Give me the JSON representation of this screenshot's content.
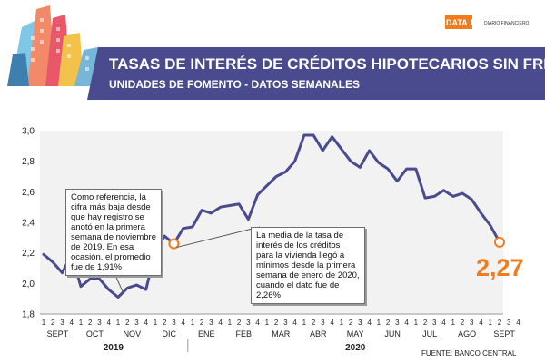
{
  "header": {
    "title": "TASAS DE INTERÉS DE CRÉDITOS HIPOTECARIOS SIN FRENOS",
    "subtitle": "UNIDADES DE FOMENTO - DATOS SEMANALES",
    "logo_left": "DATA",
    "logo_mid": "DF",
    "logo_right": "DIARIO FINANCIERO",
    "colors": {
      "band": "#4a4a8e",
      "accent": "#f07c1c"
    }
  },
  "source": "FUENTE: BANCO CENTRAL",
  "annotations": {
    "note_2019": "Como referencia, la cifra más baja desde que hay registro se anotó en la primera semana de noviembre de 2019. En esa ocasión, el promedio fue de 1,91%",
    "note_2020": "La media de la tasa de interés de los créditos para la vivienda llegó a mínimos desde la primera semana de enero de 2020, cuando el dato fue de 2,26%",
    "last_value_label": "2,27"
  },
  "chart_data": {
    "type": "line",
    "title": "TASAS DE INTERÉS DE CRÉDITOS HIPOTECARIOS SIN FRENOS",
    "subtitle": "UNIDADES DE FOMENTO - DATOS SEMANALES",
    "xlabel": "",
    "ylabel": "",
    "ylim": [
      1.8,
      3.0
    ],
    "y_ticks": [
      "1,8",
      "2,0",
      "2,2",
      "2,4",
      "2,6",
      "2,8",
      "3,0"
    ],
    "y_tick_values": [
      1.8,
      2.0,
      2.2,
      2.4,
      2.6,
      2.8,
      3.0
    ],
    "grid": false,
    "line_color": "#4a4a8e",
    "highlight_color": "#f07c1c",
    "months": [
      {
        "label": "SEPT",
        "weeks": [
          "1",
          "2",
          "3",
          "4"
        ]
      },
      {
        "label": "OCT",
        "weeks": [
          "1",
          "2",
          "3",
          "4"
        ]
      },
      {
        "label": "NOV",
        "weeks": [
          "1",
          "2",
          "3",
          "4"
        ]
      },
      {
        "label": "DIC",
        "weeks": [
          "1",
          "2",
          "3",
          "4"
        ]
      },
      {
        "label": "ENE",
        "weeks": [
          "1",
          "2",
          "3",
          "4"
        ]
      },
      {
        "label": "FEB",
        "weeks": [
          "1",
          "2",
          "3",
          "4"
        ]
      },
      {
        "label": "MAR",
        "weeks": [
          "1",
          "2",
          "3",
          "4"
        ]
      },
      {
        "label": "ABR",
        "weeks": [
          "1",
          "2",
          "3",
          "4"
        ]
      },
      {
        "label": "MAY",
        "weeks": [
          "1",
          "2",
          "3",
          "4"
        ]
      },
      {
        "label": "JUN",
        "weeks": [
          "1",
          "2",
          "3",
          "4"
        ]
      },
      {
        "label": "JUL",
        "weeks": [
          "1",
          "2",
          "3",
          "4"
        ]
      },
      {
        "label": "AGO",
        "weeks": [
          "1",
          "2",
          "3",
          "4"
        ]
      },
      {
        "label": "SEPT",
        "weeks": [
          "1",
          "2",
          "3",
          "4"
        ]
      }
    ],
    "years": [
      {
        "label": "2019",
        "first_month": 0,
        "last_month": 3
      },
      {
        "label": "2020",
        "first_month": 4,
        "last_month": 12
      }
    ],
    "values": [
      2.19,
      2.14,
      2.07,
      2.19,
      1.98,
      2.03,
      2.03,
      1.96,
      1.91,
      1.97,
      1.99,
      1.96,
      2.21,
      2.31,
      2.26,
      2.36,
      2.37,
      2.48,
      2.46,
      2.5,
      2.51,
      2.52,
      2.42,
      2.58,
      2.64,
      2.7,
      2.73,
      2.8,
      2.97,
      2.97,
      2.87,
      2.96,
      2.88,
      2.8,
      2.76,
      2.87,
      2.79,
      2.75,
      2.67,
      2.75,
      2.75,
      2.56,
      2.57,
      2.61,
      2.57,
      2.59,
      2.55,
      2.46,
      2.38,
      2.27
    ],
    "highlights": [
      {
        "index": 14,
        "value": 2.26
      },
      {
        "index": 49,
        "value": 2.27,
        "label": "2,27"
      }
    ]
  }
}
